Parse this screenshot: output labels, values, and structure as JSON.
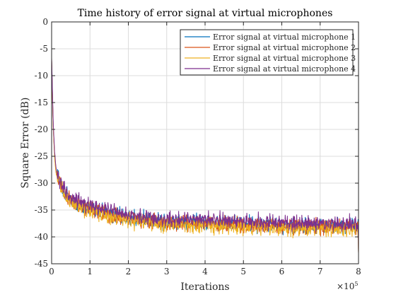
{
  "chart_data": {
    "type": "line",
    "title": "Time history of error signal at virtual microphones",
    "xlabel": "Iterations",
    "ylabel": "Square Error (dB)",
    "x_multiplier_label": "×10",
    "x_multiplier_exponent": "5",
    "xlim": [
      0,
      800000
    ],
    "ylim": [
      -45,
      0
    ],
    "xticks": [
      0,
      100000,
      200000,
      300000,
      400000,
      500000,
      600000,
      700000,
      800000
    ],
    "xtick_labels": [
      "0",
      "1",
      "2",
      "3",
      "4",
      "5",
      "6",
      "7",
      "8"
    ],
    "yticks": [
      0,
      -5,
      -10,
      -15,
      -20,
      -25,
      -30,
      -35,
      -40,
      -45
    ],
    "ytick_labels": [
      "0",
      "-5",
      "-10",
      "-15",
      "-20",
      "-25",
      "-30",
      "-35",
      "-40",
      "-45"
    ],
    "grid": true,
    "legend_position": "top-right",
    "x": [
      0,
      4000,
      8000,
      12000,
      20000,
      30000,
      40000,
      60000,
      80000,
      100000,
      150000,
      200000,
      250000,
      300000,
      350000,
      400000,
      450000,
      500000,
      550000,
      600000,
      650000,
      700000,
      750000,
      800000
    ],
    "series": [
      {
        "name": "Error signal at virtual microphone 1",
        "color": "#0072BD",
        "values": [
          -7,
          -19,
          -25,
          -28,
          -29.5,
          -31,
          -32.5,
          -33.5,
          -34.2,
          -34.6,
          -35.6,
          -36.4,
          -36.8,
          -37.1,
          -37.3,
          -37.2,
          -37.5,
          -37.6,
          -37.7,
          -37.8,
          -37.9,
          -37.9,
          -38.0,
          -38.0
        ]
      },
      {
        "name": "Error signal at virtual microphone 2",
        "color": "#D95319",
        "values": [
          -7,
          -19.2,
          -25.2,
          -28.2,
          -29.7,
          -31.2,
          -32.7,
          -33.7,
          -34.4,
          -34.8,
          -35.8,
          -36.6,
          -37.0,
          -37.3,
          -37.5,
          -37.4,
          -37.7,
          -37.8,
          -37.9,
          -38.0,
          -38.1,
          -38.1,
          -38.2,
          -38.2
        ]
      },
      {
        "name": "Error signal at virtual microphone 3",
        "color": "#EDB120",
        "values": [
          -7,
          -19.5,
          -25.5,
          -28.5,
          -30,
          -31.6,
          -33.1,
          -34.1,
          -34.8,
          -35.2,
          -36.2,
          -37.0,
          -37.4,
          -37.7,
          -37.9,
          -37.8,
          -38.1,
          -38.2,
          -38.3,
          -38.4,
          -38.5,
          -38.5,
          -38.6,
          -38.6
        ]
      },
      {
        "name": "Error signal at virtual microphone 4",
        "color": "#7E2F8E",
        "values": [
          -6.5,
          -18.5,
          -24.5,
          -27.5,
          -29,
          -30.6,
          -32,
          -33,
          -33.7,
          -34.1,
          -35.1,
          -35.9,
          -36.3,
          -36.6,
          -36.8,
          -36.7,
          -37.0,
          -37.1,
          -37.2,
          -37.3,
          -37.4,
          -37.4,
          -37.5,
          -37.5
        ]
      }
    ]
  }
}
